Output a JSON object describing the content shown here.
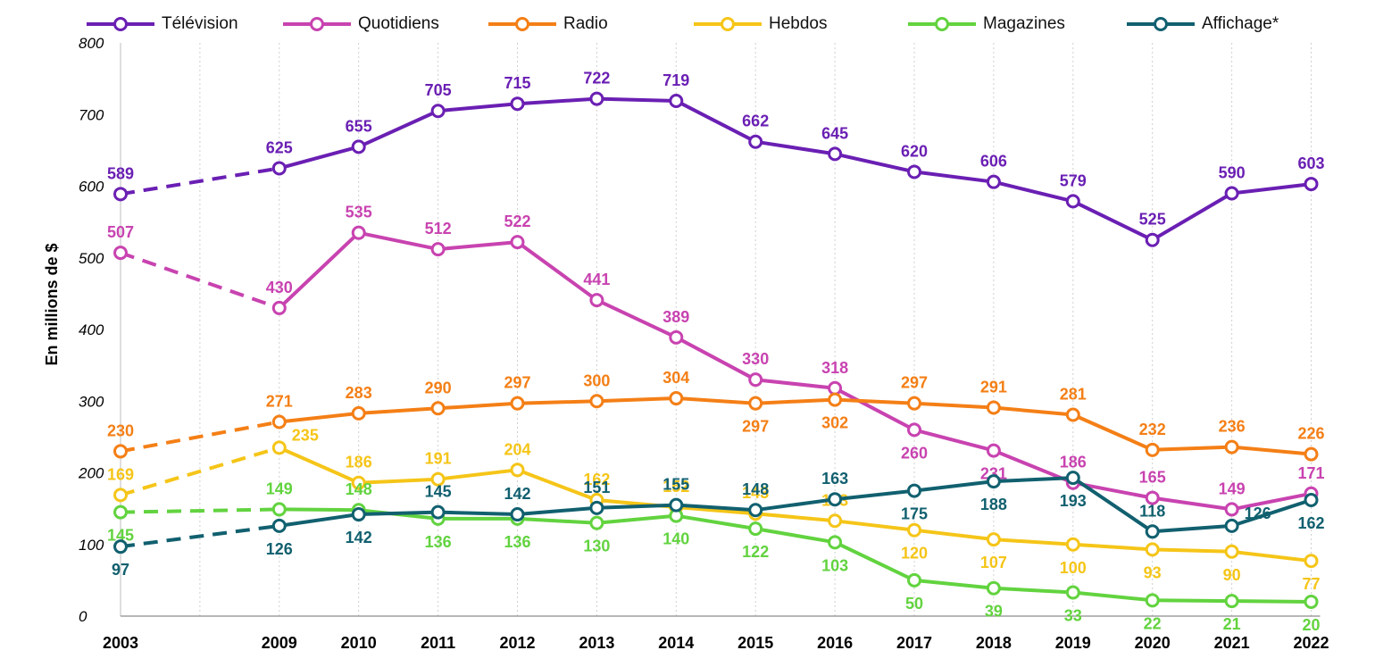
{
  "chart_data": {
    "type": "line",
    "title": "",
    "xlabel": "",
    "ylabel": "En millions de $",
    "ylim": [
      0,
      800
    ],
    "yticks": [
      "0",
      "100",
      "200",
      "300",
      "400",
      "500",
      "600",
      "700",
      "800"
    ],
    "categories": [
      "2003",
      "2009",
      "2010",
      "2011",
      "2012",
      "2013",
      "2014",
      "2015",
      "2016",
      "2017",
      "2018",
      "2019",
      "2020",
      "2021",
      "2022"
    ],
    "x_positions": [
      "2003",
      "2004-2008 gap",
      "2009",
      "2010",
      "2011",
      "2012",
      "2013",
      "2014",
      "2015",
      "2016",
      "2017",
      "2018",
      "2019",
      "2020",
      "2021",
      "2022"
    ],
    "grid": "vertical dotted",
    "legend_position": "top",
    "dashed_segment": "2003 to 2009",
    "series": [
      {
        "name": "Télévision",
        "color": "#6a1fb3",
        "values": [
          589,
          625,
          655,
          705,
          715,
          722,
          719,
          662,
          645,
          620,
          606,
          579,
          525,
          590,
          603
        ],
        "label_pos": [
          "above",
          "above",
          "above",
          "above",
          "above",
          "above",
          "above",
          "above",
          "above",
          "above",
          "above",
          "above",
          "above",
          "above",
          "above"
        ]
      },
      {
        "name": "Quotidiens",
        "color": "#c843b0",
        "values": [
          507,
          430,
          535,
          512,
          522,
          441,
          389,
          330,
          318,
          260,
          231,
          186,
          165,
          149,
          171
        ],
        "label_pos": [
          "above",
          "above",
          "above",
          "above",
          "above",
          "above",
          "above",
          "above",
          "above",
          "below",
          "below",
          "above",
          "above",
          "above",
          "above"
        ]
      },
      {
        "name": "Radio",
        "color": "#f47f16",
        "values": [
          230,
          271,
          283,
          290,
          297,
          300,
          304,
          297,
          302,
          297,
          291,
          281,
          232,
          236,
          226
        ],
        "label_pos": [
          "above",
          "above",
          "above",
          "above",
          "above",
          "above",
          "above",
          "below",
          "below",
          "above",
          "above",
          "above",
          "above",
          "above",
          "above"
        ]
      },
      {
        "name": "Hebdos",
        "color": "#f5c518",
        "values": [
          169,
          235,
          186,
          191,
          204,
          162,
          152,
          143,
          133,
          120,
          107,
          100,
          93,
          90,
          77
        ],
        "label_pos": [
          "above",
          "right",
          "above",
          "above",
          "above",
          "above",
          "above",
          "above",
          "above",
          "below",
          "below",
          "below",
          "below",
          "below",
          "below"
        ]
      },
      {
        "name": "Magazines",
        "color": "#62d33f",
        "values": [
          145,
          149,
          148,
          136,
          136,
          130,
          140,
          122,
          103,
          50,
          39,
          33,
          22,
          21,
          20
        ],
        "label_pos": [
          "below",
          "above",
          "above",
          "below",
          "below",
          "below",
          "below",
          "below",
          "below",
          "below",
          "below",
          "below",
          "below",
          "below",
          "below"
        ]
      },
      {
        "name": "Affichage*",
        "color": "#11606f",
        "values": [
          97,
          126,
          142,
          145,
          142,
          151,
          155,
          148,
          163,
          175,
          188,
          193,
          118,
          126,
          162
        ],
        "label_pos": [
          "below",
          "below",
          "below",
          "above",
          "above",
          "above",
          "above",
          "above",
          "above",
          "below",
          "below",
          "below",
          "above",
          "right",
          "below"
        ]
      }
    ]
  }
}
